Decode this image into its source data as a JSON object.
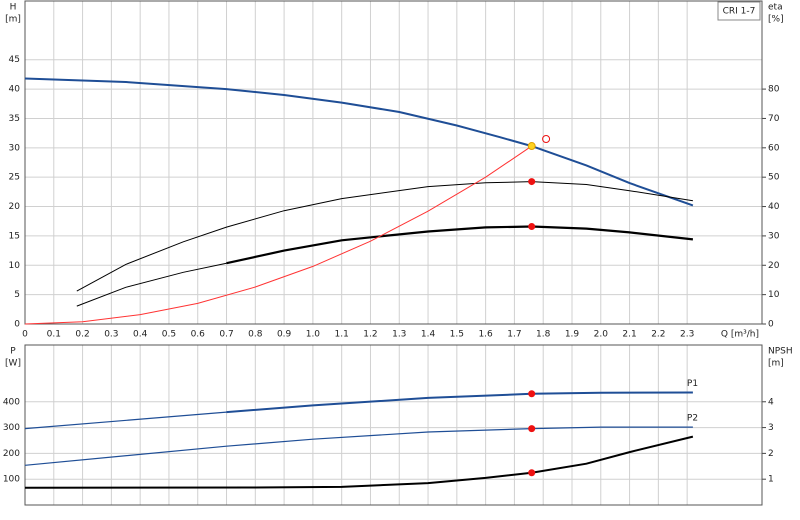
{
  "chart_data": [
    {
      "type": "line",
      "ylabel": [
        "H",
        "[m]"
      ],
      "y2label": [
        "eta",
        "[%]"
      ],
      "xlabel": "Q [m³/h]",
      "legend_text": "CRI 1-7",
      "xlim": [
        0,
        2.56
      ],
      "ylim": [
        0,
        55
      ],
      "y2lim": [
        0,
        110
      ],
      "xticks": [
        0,
        0.1,
        0.2,
        0.3,
        0.4,
        0.5,
        0.6,
        0.7,
        0.8,
        0.9,
        {
          "value": 1,
          "label": "1.0"
        },
        1.1,
        1.2,
        1.3,
        1.4,
        1.5,
        1.6,
        1.7,
        1.8,
        1.9,
        {
          "value": 2,
          "label": "2.0"
        },
        2.1,
        2.2,
        2.3
      ],
      "yticks": [
        0,
        5,
        10,
        15,
        20,
        25,
        30,
        35,
        40,
        45
      ],
      "y2ticks": [
        0,
        10,
        20,
        30,
        40,
        50,
        60,
        70,
        80
      ],
      "xtick_labels": true,
      "grid": true,
      "series": [
        {
          "color": "#1f4e96",
          "width": 2,
          "x": [
            0,
            0.35,
            0.7,
            0.9,
            1.1,
            1.3,
            1.5,
            1.65,
            1.76,
            1.95,
            2.1,
            2.32
          ],
          "values": [
            41.8,
            41.2,
            40,
            39,
            37.7,
            36.1,
            33.8,
            31.8,
            30.3,
            27,
            24,
            20.2
          ]
        },
        {
          "color": "#000000",
          "width": 1,
          "axis": "y2",
          "x": [
            0.18,
            0.35,
            0.55,
            0.7,
            0.9,
            1.1,
            1.4,
            1.6,
            1.76,
            1.95,
            2.1,
            2.32
          ],
          "values": [
            11.2,
            20.3,
            28,
            33,
            38.6,
            42.7,
            46.8,
            48.1,
            48.5,
            47.5,
            45.4,
            42
          ]
        },
        {
          "color": "#000000",
          "width": 1,
          "axis": "y2",
          "x": [
            0.18,
            0.35,
            0.55,
            0.7
          ],
          "values": [
            6.1,
            12.5,
            17.6,
            20.7
          ]
        },
        {
          "color": "#000000",
          "width": 2.2,
          "axis": "y2",
          "x": [
            0.7,
            0.9,
            1.1,
            1.4,
            1.6,
            1.76,
            1.95,
            2.1,
            2.32
          ],
          "values": [
            20.7,
            25,
            28.5,
            31.5,
            32.9,
            33.2,
            32.5,
            31.2,
            28.8
          ]
        },
        {
          "color": "#ff3333",
          "width": 1,
          "x": [
            0,
            0.2,
            0.4,
            0.6,
            0.8,
            1,
            1.2,
            1.4,
            1.6,
            1.76
          ],
          "values": [
            0,
            0.4,
            1.6,
            3.5,
            6.3,
            9.8,
            14.1,
            19.2,
            25,
            30.3
          ]
        }
      ],
      "markers": [
        {
          "x": 1.76,
          "y": 30.3,
          "color": "#ffd21f",
          "stroke": "#e0a000"
        },
        {
          "x": 1.76,
          "y": 48.5,
          "color": "#ee1111",
          "axis": "y2"
        },
        {
          "x": 1.76,
          "y": 33.2,
          "color": "#ee1111",
          "axis": "y2"
        },
        {
          "x": 1.81,
          "y": 31.5,
          "color": "none",
          "stroke": "#ee1111"
        }
      ]
    },
    {
      "type": "line",
      "ylabel": [
        "P",
        "[W]"
      ],
      "y2label": [
        "NPSH",
        "[m]"
      ],
      "xlim": [
        0,
        2.56
      ],
      "ylim": [
        0,
        620
      ],
      "y2lim": [
        0,
        6.2
      ],
      "xticks": [
        0,
        0.1,
        0.2,
        0.3,
        0.4,
        0.5,
        0.6,
        0.7,
        0.8,
        0.9,
        1,
        1.1,
        1.2,
        1.3,
        1.4,
        1.5,
        1.6,
        1.7,
        1.8,
        1.9,
        2,
        2.1,
        2.2,
        2.3
      ],
      "yticks": [
        100,
        200,
        300,
        400
      ],
      "y2ticks": [
        1,
        2,
        3,
        4
      ],
      "xtick_labels": false,
      "grid": true,
      "series": [
        {
          "name": "P1",
          "color": "#1f4e96",
          "width": 1.2,
          "x": [
            0,
            0.7
          ],
          "values": [
            296,
            360
          ]
        },
        {
          "name": "P1",
          "color": "#1f4e96",
          "width": 2,
          "x": [
            0.7,
            1,
            1.4,
            1.76,
            2,
            2.32
          ],
          "values": [
            360,
            386,
            415,
            431,
            435,
            436
          ]
        },
        {
          "name": "P2",
          "color": "#1f4e96",
          "width": 1.2,
          "x": [
            0,
            0.7,
            1,
            1.4,
            1.76,
            2,
            2.32
          ],
          "values": [
            154,
            228,
            255,
            283,
            296,
            302,
            302
          ]
        },
        {
          "color": "#000000",
          "width": 2,
          "axis": "y2",
          "x": [
            0,
            0.8,
            1.1,
            1.4,
            1.6,
            1.76,
            1.95,
            2.1,
            2.32
          ],
          "values": [
            0.67,
            0.68,
            0.7,
            0.85,
            1.05,
            1.25,
            1.6,
            2.05,
            2.65
          ]
        }
      ],
      "markers": [
        {
          "x": 1.76,
          "y": 431,
          "color": "#ee1111"
        },
        {
          "x": 1.76,
          "y": 296,
          "color": "#ee1111"
        },
        {
          "x": 1.76,
          "y": 1.25,
          "color": "#ee1111",
          "axis": "y2"
        }
      ]
    }
  ]
}
